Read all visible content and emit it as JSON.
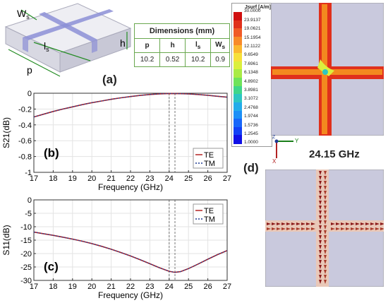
{
  "panel_labels": {
    "a": "(a)",
    "b": "(b)",
    "c": "(c)",
    "d": "(d)"
  },
  "unit_cell": {
    "label_ws_main": "W",
    "label_ws_sub": "s",
    "label_ls_main": "l",
    "label_ls_sub": "s",
    "label_h": "h",
    "label_p": "p"
  },
  "dimensions": {
    "title": "Dimensions (mm)",
    "headers": [
      {
        "main": "p",
        "sub": ""
      },
      {
        "main": "h",
        "sub": ""
      },
      {
        "main": "l",
        "sub": "s"
      },
      {
        "main": "W",
        "sub": "s"
      }
    ],
    "values": [
      "10.2",
      "0.52",
      "10.2",
      "0.9"
    ]
  },
  "colorbar": {
    "title": "Jsurf [A/m]",
    "ticks": [
      "30.0000",
      "23.9137",
      "19.0621",
      "15.1954",
      "12.1122",
      "9.6549",
      "7.6961",
      "6.1348",
      "4.8902",
      "3.8981",
      "3.1072",
      "2.4768",
      "1.9744",
      "1.5736",
      "1.2545",
      "1.0000"
    ],
    "colors": [
      "#d01010",
      "#e0301c",
      "#f05a28",
      "#f88a2a",
      "#fbb830",
      "#f7e03a",
      "#dbef3e",
      "#a9eb45",
      "#6fe35a",
      "#3fd68a",
      "#2dc6c2",
      "#23acea",
      "#1c8ff7",
      "#1766fa",
      "#1240f6",
      "#1010e6"
    ]
  },
  "frequency_label": "24.15 GHz",
  "axes_icon": {
    "x": "X",
    "y": "Y",
    "z": "Z"
  },
  "chart_data": [
    {
      "type": "line",
      "xlabel": "Frequency (GHz)",
      "ylabel": "S21(dB)",
      "xlim": [
        17,
        27
      ],
      "ylim": [
        -1,
        0
      ],
      "xticks": [
        17,
        18,
        19,
        20,
        21,
        22,
        23,
        24,
        25,
        26,
        27
      ],
      "yticks": [
        0,
        -0.2,
        -0.4,
        -0.6,
        -0.8,
        -1
      ],
      "ytick_labels": [
        "0",
        "-0.2",
        "-0.4",
        "-0.6",
        "-0.8",
        "-1"
      ],
      "grid": true,
      "legend_position": "lower-right",
      "vlines": [
        24.0,
        24.3
      ],
      "x": [
        17,
        17.5,
        18,
        18.5,
        19,
        19.5,
        20,
        20.5,
        21,
        21.5,
        22,
        22.5,
        23,
        23.5,
        24,
        24.5,
        25,
        25.5,
        26,
        26.5,
        27
      ],
      "series": [
        {
          "name": "TE",
          "color": "#b22222",
          "dash": "",
          "values": [
            -0.3,
            -0.265,
            -0.23,
            -0.2,
            -0.172,
            -0.145,
            -0.12,
            -0.098,
            -0.077,
            -0.058,
            -0.042,
            -0.028,
            -0.016,
            -0.008,
            -0.004,
            -0.005,
            -0.009,
            -0.016,
            -0.026,
            -0.038,
            -0.05
          ]
        },
        {
          "name": "TM",
          "color": "#1f3a93",
          "dash": "2,2",
          "values": [
            -0.3,
            -0.265,
            -0.23,
            -0.2,
            -0.172,
            -0.145,
            -0.12,
            -0.098,
            -0.077,
            -0.058,
            -0.042,
            -0.028,
            -0.016,
            -0.008,
            -0.004,
            -0.005,
            -0.009,
            -0.016,
            -0.026,
            -0.038,
            -0.05
          ]
        }
      ]
    },
    {
      "type": "line",
      "xlabel": "Frequency (GHz)",
      "ylabel": "S11(dB)",
      "xlim": [
        17,
        27
      ],
      "ylim": [
        -30,
        0
      ],
      "xticks": [
        17,
        18,
        19,
        20,
        21,
        22,
        23,
        24,
        25,
        26,
        27
      ],
      "yticks": [
        0,
        -5,
        -10,
        -15,
        -20,
        -25,
        -30
      ],
      "ytick_labels": [
        "0",
        "-5",
        "-10",
        "-15",
        "-20",
        "-25",
        "-30"
      ],
      "grid": true,
      "legend_position": "top-right",
      "vlines": [
        24.0,
        24.3
      ],
      "x": [
        17,
        17.5,
        18,
        18.5,
        19,
        19.5,
        20,
        20.5,
        21,
        21.5,
        22,
        22.5,
        23,
        23.5,
        24,
        24.3,
        24.6,
        25,
        25.5,
        26,
        26.5,
        27
      ],
      "series": [
        {
          "name": "TE",
          "color": "#b22222",
          "dash": "",
          "values": [
            -12.0,
            -12.6,
            -13.2,
            -13.9,
            -14.6,
            -15.4,
            -16.3,
            -17.3,
            -18.4,
            -19.6,
            -20.9,
            -22.3,
            -23.8,
            -25.3,
            -26.6,
            -27.0,
            -26.7,
            -25.6,
            -23.9,
            -22.1,
            -20.4,
            -18.9
          ]
        },
        {
          "name": "TM",
          "color": "#1f3a93",
          "dash": "2,2",
          "values": [
            -12.0,
            -12.6,
            -13.2,
            -13.9,
            -14.6,
            -15.4,
            -16.3,
            -17.3,
            -18.4,
            -19.6,
            -20.9,
            -22.3,
            -23.8,
            -25.3,
            -26.6,
            -27.0,
            -26.7,
            -25.6,
            -23.9,
            -22.1,
            -20.4,
            -18.9
          ]
        }
      ]
    }
  ]
}
